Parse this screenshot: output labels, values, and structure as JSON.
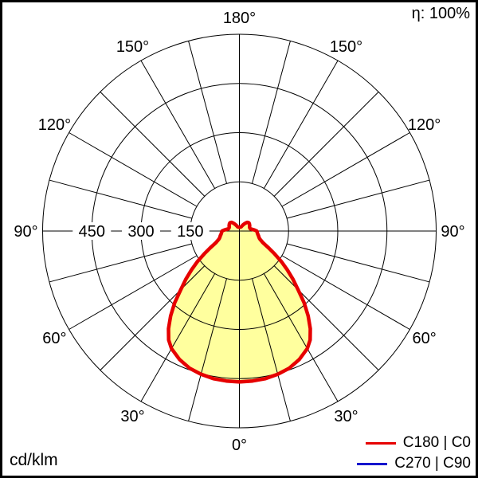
{
  "header": {
    "efficiency_label": "η: 100%"
  },
  "footer": {
    "unit_label": "cd/klm"
  },
  "legend": {
    "items": [
      {
        "label": "C180 | C0",
        "color": "#e60000"
      },
      {
        "label": "C270 | C90",
        "color": "#1515cd"
      }
    ]
  },
  "chart_data": {
    "type": "line",
    "subtype": "polar-photometric",
    "units": "cd/klm",
    "efficiency": "η: 100%",
    "radial_axis": {
      "ticks": [
        150,
        300,
        450
      ],
      "max": 600,
      "unit": "cd/klm",
      "tick_label_side": "left"
    },
    "angular_axis": {
      "labels": [
        "0°",
        "30°",
        "60°",
        "90°",
        "120°",
        "150°",
        "180°"
      ],
      "grid_step_deg": 15,
      "zero_position": "bottom",
      "mirrored_labels": true
    },
    "fill_color": "#ffff9e",
    "grid_color": "#000000",
    "series": [
      {
        "name": "C180 | C0",
        "color": "#e60000",
        "fill": "#ffff9e",
        "symmetric": true,
        "gamma_deg": [
          0,
          5,
          10,
          15,
          20,
          25,
          30,
          33,
          36,
          39,
          42,
          45,
          48,
          51,
          54,
          57,
          60,
          62,
          64,
          66,
          68,
          70,
          73,
          76,
          80,
          84,
          88,
          90,
          93,
          96,
          99,
          102,
          106,
          110,
          114,
          118,
          122,
          126,
          130,
          134,
          138,
          142,
          146,
          150,
          154,
          158,
          163,
          168,
          173,
          180
        ],
        "intensity_cd_klm": [
          460,
          459,
          457,
          452,
          445,
          432,
          414,
          396,
          368,
          333,
          295,
          253,
          220,
          188,
          158,
          128,
          103,
          89,
          79,
          73,
          68,
          65,
          62,
          60,
          57,
          55,
          54,
          53,
          48,
          42,
          37,
          34,
          33,
          33,
          34,
          35.5,
          36.5,
          37.5,
          38,
          37.5,
          35.5,
          31,
          26,
          21,
          17,
          14,
          12.5,
          12,
          11.8,
          11.5
        ]
      },
      {
        "name": "C270 | C90",
        "color": "#1515cd"
      }
    ]
  }
}
